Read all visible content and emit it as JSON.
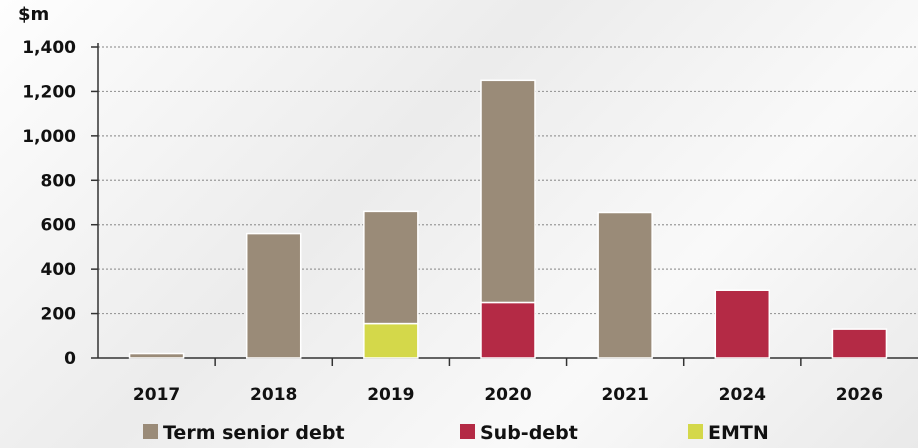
{
  "chart_data": {
    "type": "bar",
    "stacked": true,
    "ylabel": "$m",
    "ylim": [
      0,
      1400
    ],
    "yticks": [
      0,
      200,
      400,
      600,
      800,
      1000,
      1200,
      1400
    ],
    "ytick_labels": [
      "0",
      "200",
      "400",
      "600",
      "800",
      "1,000",
      "1,200",
      "1,400"
    ],
    "grid": true,
    "legend_position": "bottom",
    "categories": [
      "2017",
      "2018",
      "2019",
      "2020",
      "2021",
      "2024",
      "2026"
    ],
    "series": [
      {
        "name": "EMTN",
        "color": "#d4d84a",
        "values": [
          0,
          0,
          155,
          0,
          0,
          0,
          0
        ]
      },
      {
        "name": "Sub-debt",
        "color": "#b42a45",
        "values": [
          0,
          0,
          0,
          250,
          0,
          305,
          130
        ]
      },
      {
        "name": "Term senior debt",
        "color": "#9a8b78",
        "values": [
          20,
          560,
          505,
          1000,
          655,
          0,
          0
        ]
      }
    ],
    "legend_order": [
      "Term senior debt",
      "Sub-debt",
      "EMTN"
    ]
  }
}
